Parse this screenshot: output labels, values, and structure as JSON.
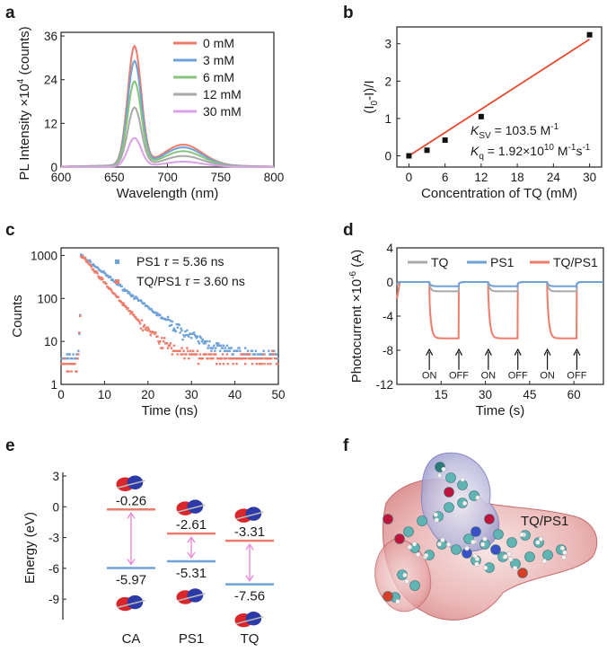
{
  "panels": {
    "a": "a",
    "b": "b",
    "c": "c",
    "d": "d",
    "e": "e",
    "f": "f"
  },
  "chart_data": [
    {
      "id": "a",
      "type": "line",
      "xlabel": "Wavelength (nm)",
      "ylabel_main": "PL Intensity ×10",
      "ylabel_exp": "4",
      "ylabel_unit": " (counts)",
      "xlim": [
        600,
        800
      ],
      "ylim": [
        0,
        37
      ],
      "xticks": [
        600,
        650,
        700,
        750,
        800
      ],
      "yticks": [
        0,
        12,
        24,
        36
      ],
      "series": [
        {
          "name": "0 mM",
          "color": "#ef7b6a",
          "peak": 32.5
        },
        {
          "name": "3 mM",
          "color": "#6fa2d6",
          "peak": 28.5
        },
        {
          "name": "6 mM",
          "color": "#88c47a",
          "peak": 23.0
        },
        {
          "name": "12 mM",
          "color": "#a9a9a9",
          "peak": 16.0
        },
        {
          "name": "30 mM",
          "color": "#d9a1e6",
          "peak": 7.8
        }
      ]
    },
    {
      "id": "b",
      "type": "scatter",
      "xlabel": "Concentration of TQ (mM)",
      "ylabel": "(I0-I)/I",
      "ylabel_parts": [
        "(I",
        "0",
        "-I)/I"
      ],
      "xlim": [
        -2,
        32
      ],
      "ylim": [
        -0.3,
        3.45
      ],
      "xticks": [
        0,
        6,
        12,
        18,
        24,
        30
      ],
      "yticks": [
        0,
        1,
        2,
        3
      ],
      "points": [
        [
          0,
          0
        ],
        [
          3,
          0.15
        ],
        [
          6,
          0.42
        ],
        [
          12,
          1.05
        ],
        [
          30,
          3.24
        ]
      ],
      "fit": {
        "x0": 0,
        "y0": 0,
        "x1": 30,
        "y1": 3.12,
        "color": "#e6492d"
      },
      "ksv_label": "K",
      "ksv_sub": "SV",
      "ksv_text": " = 103.5 M",
      "ksv_sup": "-1",
      "kq_label": "K",
      "kq_sub": "q",
      "kq_text": " = 1.92×10",
      "kq_sup1": "10",
      "kq_unit1": " M",
      "kq_sup2": "-1",
      "kq_unit2": "s",
      "kq_sup3": "-1"
    },
    {
      "id": "c",
      "type": "scatter",
      "xlabel": "Time (ns)",
      "ylabel": "Counts",
      "xlim": [
        0,
        50
      ],
      "ylim_log": [
        1,
        1500
      ],
      "xticks": [
        0,
        10,
        20,
        30,
        40,
        50
      ],
      "yticks": [
        "1",
        "10",
        "100",
        "1000"
      ],
      "series": [
        {
          "name": "PS1",
          "tau_symbol": "τ",
          "tau_text": " = 5.36 ns",
          "color": "#6fa2d6",
          "tau": 5.36
        },
        {
          "name": "TQ/PS1",
          "tau_symbol": "τ",
          "tau_text": " = 3.60 ns",
          "color": "#ef7b6a",
          "tau": 3.6
        }
      ]
    },
    {
      "id": "d",
      "type": "line",
      "xlabel": "Time (s)",
      "ylabel_main": "Photocurrent ×10",
      "ylabel_exp": "-6",
      "ylabel_unit": " (A)",
      "xlim": [
        0,
        70
      ],
      "ylim": [
        -12,
        4
      ],
      "xticks": [
        15,
        30,
        45,
        60
      ],
      "yticks": [
        4,
        0,
        -4,
        -8,
        -12
      ],
      "on_times": [
        11,
        31,
        51
      ],
      "off_times": [
        21,
        41,
        61
      ],
      "on_label": "ON",
      "off_label": "OFF",
      "series": [
        {
          "name": "TQ",
          "color": "#a9a9a9",
          "level": -1.1
        },
        {
          "name": "PS1",
          "color": "#6fa2d6",
          "level": -0.5
        },
        {
          "name": "TQ/PS1",
          "color": "#ef7b6a",
          "level": -6.6
        }
      ]
    },
    {
      "id": "e",
      "type": "bar",
      "ylabel": "Energy (eV)",
      "ylim": [
        -11,
        3
      ],
      "yticks": [
        3,
        0,
        -3,
        -6,
        -9
      ],
      "categories": [
        "CA",
        "PS1",
        "TQ"
      ],
      "lumo": [
        -0.26,
        -2.61,
        -3.31
      ],
      "homo": [
        -5.97,
        -5.31,
        -7.56
      ],
      "lumo_labels": [
        "-0.26",
        "-2.61",
        "-3.31"
      ],
      "homo_labels": [
        "-5.97",
        "-5.31",
        "-7.56"
      ],
      "colors": {
        "lumo": "#ef7b6a",
        "homo": "#6fa2d6",
        "arrow": "#e88bd8"
      }
    }
  ],
  "f": {
    "title": "TQ/PS1"
  }
}
